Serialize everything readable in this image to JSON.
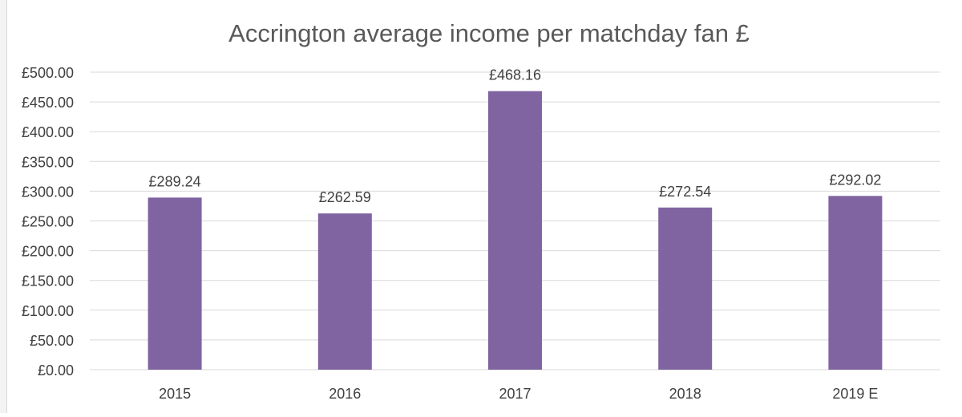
{
  "chart_data": {
    "type": "bar",
    "title": "Accrington average income per matchday fan £",
    "categories": [
      "2015",
      "2016",
      "2017",
      "2018",
      "2019 E"
    ],
    "values": [
      289.24,
      262.59,
      468.16,
      272.54,
      292.02
    ],
    "data_labels": [
      "£289.24",
      "£262.59",
      "£468.16",
      "£272.54",
      "£292.02"
    ],
    "y_ticks": [
      "£0.00",
      "£50.00",
      "£100.00",
      "£150.00",
      "£200.00",
      "£250.00",
      "£300.00",
      "£350.00",
      "£400.00",
      "£450.00",
      "£500.00"
    ],
    "ylim": [
      0,
      500
    ],
    "ytick_step": 50,
    "xlabel": "",
    "ylabel": "",
    "grid": true,
    "legend": "none",
    "bar_color": "#8064a2",
    "gridline_color": "#d9d9d9",
    "text_color": "#404040",
    "title_color": "#595959"
  }
}
